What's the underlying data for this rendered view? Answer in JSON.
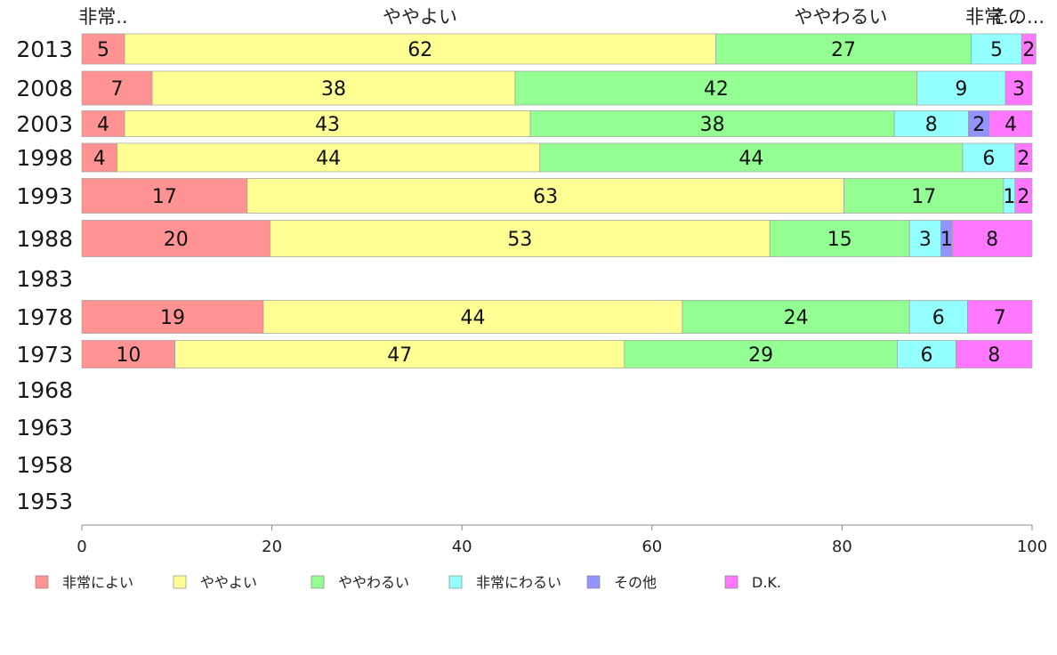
{
  "chart_data": {
    "type": "bar",
    "orientation": "horizontal",
    "stacked": true,
    "series": [
      {
        "name": "非常によい",
        "color": "#ff9393"
      },
      {
        "name": "ややよい",
        "color": "#ffff93"
      },
      {
        "name": "ややわるい",
        "color": "#93ff93"
      },
      {
        "name": "非常にわるい",
        "color": "#93ffff"
      },
      {
        "name": "その他",
        "color": "#9393ff"
      },
      {
        "name": "D.K.",
        "color": "#ff77ff"
      }
    ],
    "top_labels": [
      "非常..",
      "ややよい",
      "ややわるい",
      "非常...",
      "その..."
    ],
    "rows": [
      {
        "year": "2013",
        "values": [
          4.5,
          62.2,
          26.9,
          5.3,
          0,
          1.5
        ],
        "labels": [
          "5",
          "62",
          "27",
          "5",
          "",
          "2"
        ]
      },
      {
        "year": "2008",
        "values": [
          7.4,
          38.2,
          42.3,
          9.3,
          0,
          2.8
        ],
        "labels": [
          "7",
          "38",
          "42",
          "9",
          "",
          "3"
        ]
      },
      {
        "year": "2003",
        "values": [
          4.5,
          42.7,
          38.3,
          7.8,
          2.2,
          4.5
        ],
        "labels": [
          "4",
          "43",
          "38",
          "8",
          "2",
          "4"
        ]
      },
      {
        "year": "1998",
        "values": [
          3.7,
          44.5,
          44.5,
          5.5,
          0,
          1.8
        ],
        "labels": [
          "4",
          "44",
          "44",
          "6",
          "",
          "2"
        ]
      },
      {
        "year": "1993",
        "values": [
          17.4,
          62.8,
          16.8,
          1.2,
          0,
          1.8
        ],
        "labels": [
          "17",
          "63",
          "17",
          "1",
          "",
          "2"
        ]
      },
      {
        "year": "1988",
        "values": [
          19.8,
          52.6,
          14.7,
          3.3,
          1.2,
          8.4
        ],
        "labels": [
          "20",
          "53",
          "15",
          "3",
          "1",
          "8"
        ]
      },
      {
        "year": "1983",
        "values": [],
        "labels": []
      },
      {
        "year": "1978",
        "values": [
          19.1,
          44.1,
          23.9,
          6.1,
          0,
          6.8
        ],
        "labels": [
          "19",
          "44",
          "24",
          "6",
          "",
          "7"
        ]
      },
      {
        "year": "1973",
        "values": [
          9.8,
          47.3,
          28.7,
          6.2,
          0,
          8.0
        ],
        "labels": [
          "10",
          "47",
          "29",
          "6",
          "",
          "8"
        ]
      },
      {
        "year": "1968",
        "values": [],
        "labels": []
      },
      {
        "year": "1963",
        "values": [],
        "labels": []
      },
      {
        "year": "1958",
        "values": [],
        "labels": []
      },
      {
        "year": "1953",
        "values": [],
        "labels": []
      }
    ],
    "xlim": [
      0,
      100
    ],
    "xticks": [
      "0",
      "20",
      "40",
      "60",
      "80",
      "100"
    ],
    "xlabel": "",
    "ylabel": "",
    "title": "",
    "legend_position": "bottom"
  }
}
